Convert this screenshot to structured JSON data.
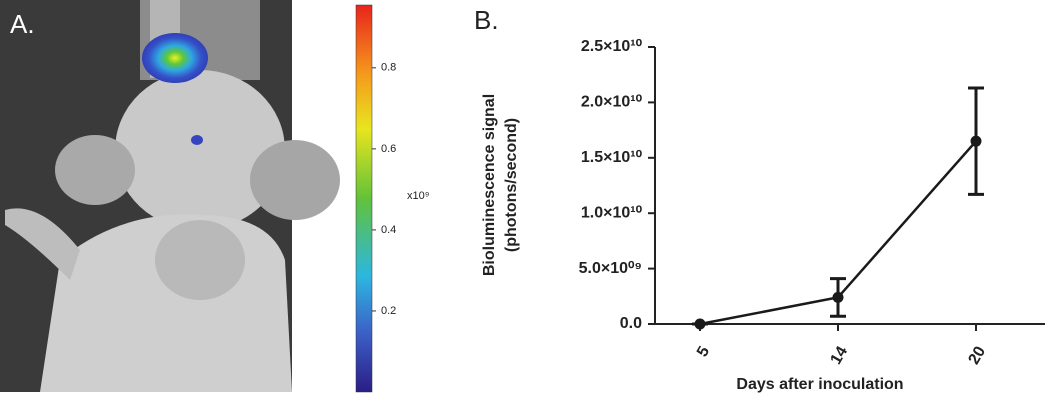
{
  "panel_a": {
    "panel_label": "A.",
    "colorbar": {
      "range": [
        0,
        0.955
      ],
      "ticks": [
        0.2,
        0.4,
        0.6,
        0.8
      ],
      "unit_label": "x10⁹"
    }
  },
  "chart_data": {
    "type": "line",
    "panel_label": "B.",
    "xlabel": "Days after inoculation",
    "ylabel": [
      "Bioluminescence signal",
      "(photons/second)"
    ],
    "categories": [
      "5",
      "14",
      "20"
    ],
    "values": [
      0,
      2400000000,
      16500000000
    ],
    "errors": [
      0,
      1700000000,
      4800000000
    ],
    "color": "#1a1a1a",
    "ylim": [
      0,
      25000000000
    ],
    "yticks": [
      {
        "value": 0,
        "label": "0.0"
      },
      {
        "value": 5000000000,
        "label": "5.0×10⁰⁹"
      },
      {
        "value": 10000000000,
        "label": "1.0×10¹⁰"
      },
      {
        "value": 15000000000,
        "label": "1.5×10¹⁰"
      },
      {
        "value": 20000000000,
        "label": "2.0×10¹⁰"
      },
      {
        "value": 25000000000,
        "label": "2.5×10¹⁰"
      }
    ]
  }
}
